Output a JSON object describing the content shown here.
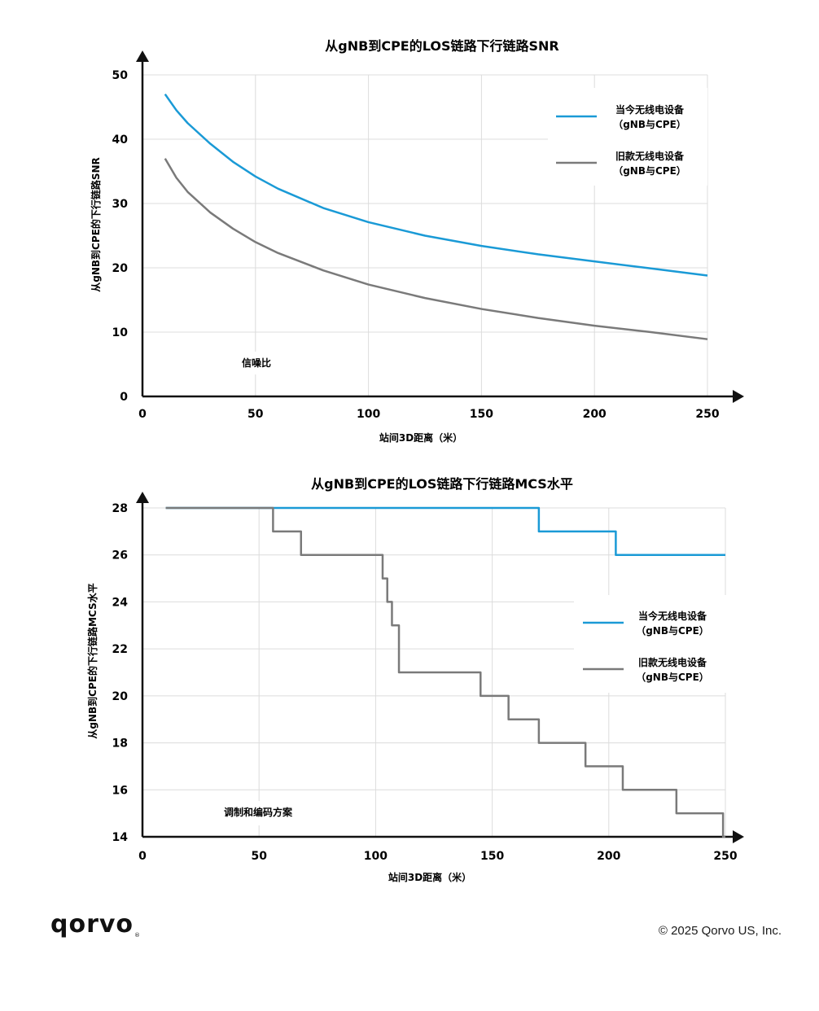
{
  "chart_data": [
    {
      "type": "line",
      "title": "从gNB到CPE的LOS链路下行链路SNR",
      "xlabel": "站间3D距离（米）",
      "ylabel": "从gNB到CPE的下行链路SNR",
      "xlim": [
        0,
        250
      ],
      "ylim": [
        0,
        50
      ],
      "xticks": [
        0,
        50,
        100,
        150,
        200,
        250
      ],
      "yticks": [
        0,
        10,
        20,
        30,
        40,
        50
      ],
      "grid": true,
      "legend_position": "top-right",
      "annotation": "信噪比",
      "series": [
        {
          "name_line1": "当今无线电设备",
          "name_line2": "（gNB与CPE）",
          "color": "#1a9ad6",
          "x": [
            10,
            15,
            20,
            30,
            40,
            50,
            60,
            80,
            100,
            125,
            150,
            175,
            200,
            225,
            250
          ],
          "y": [
            47,
            44.5,
            42.5,
            39.3,
            36.5,
            34.2,
            32.3,
            29.3,
            27.1,
            25,
            23.4,
            22.1,
            21,
            19.9,
            18.8
          ]
        },
        {
          "name_line1": "旧款无线电设备",
          "name_line2": "（gNB与CPE）",
          "color": "#7a7a7a",
          "x": [
            10,
            15,
            20,
            30,
            40,
            50,
            60,
            80,
            100,
            125,
            150,
            175,
            200,
            225,
            250
          ],
          "y": [
            37,
            34,
            31.8,
            28.6,
            26.1,
            24,
            22.3,
            19.6,
            17.4,
            15.3,
            13.6,
            12.2,
            11,
            10,
            8.9
          ]
        }
      ]
    },
    {
      "type": "line",
      "title": "从gNB到CPE的LOS链路下行链路MCS水平",
      "xlabel": "站间3D距离（米）",
      "ylabel": "从gNB到CPE的下行链路MCS水平",
      "xlim": [
        0,
        250
      ],
      "ylim": [
        14,
        28
      ],
      "xticks": [
        0,
        50,
        100,
        150,
        200,
        250
      ],
      "yticks": [
        14,
        16,
        18,
        20,
        22,
        24,
        26,
        28
      ],
      "grid": true,
      "legend_position": "right",
      "annotation": "调制和编码方案",
      "series": [
        {
          "name_line1": "当今无线电设备",
          "name_line2": "（gNB与CPE）",
          "color": "#1a9ad6",
          "step_x": [
            10,
            170,
            203,
            250
          ],
          "step_y": [
            28,
            27,
            26,
            26
          ]
        },
        {
          "name_line1": "旧款无线电设备",
          "name_line2": "（gNB与CPE）",
          "color": "#7a7a7a",
          "step_x": [
            10,
            56,
            68,
            103,
            105,
            107,
            110,
            145,
            157,
            170,
            190,
            206,
            229,
            249,
            249
          ],
          "step_y": [
            28,
            27,
            26,
            25,
            24,
            23,
            21,
            20,
            19,
            18,
            17,
            16,
            15,
            14,
            14
          ]
        }
      ]
    }
  ],
  "footer": {
    "logo_text": "qorvo",
    "logo_mark": "®",
    "copyright": "© 2025 Qorvo US, Inc."
  }
}
